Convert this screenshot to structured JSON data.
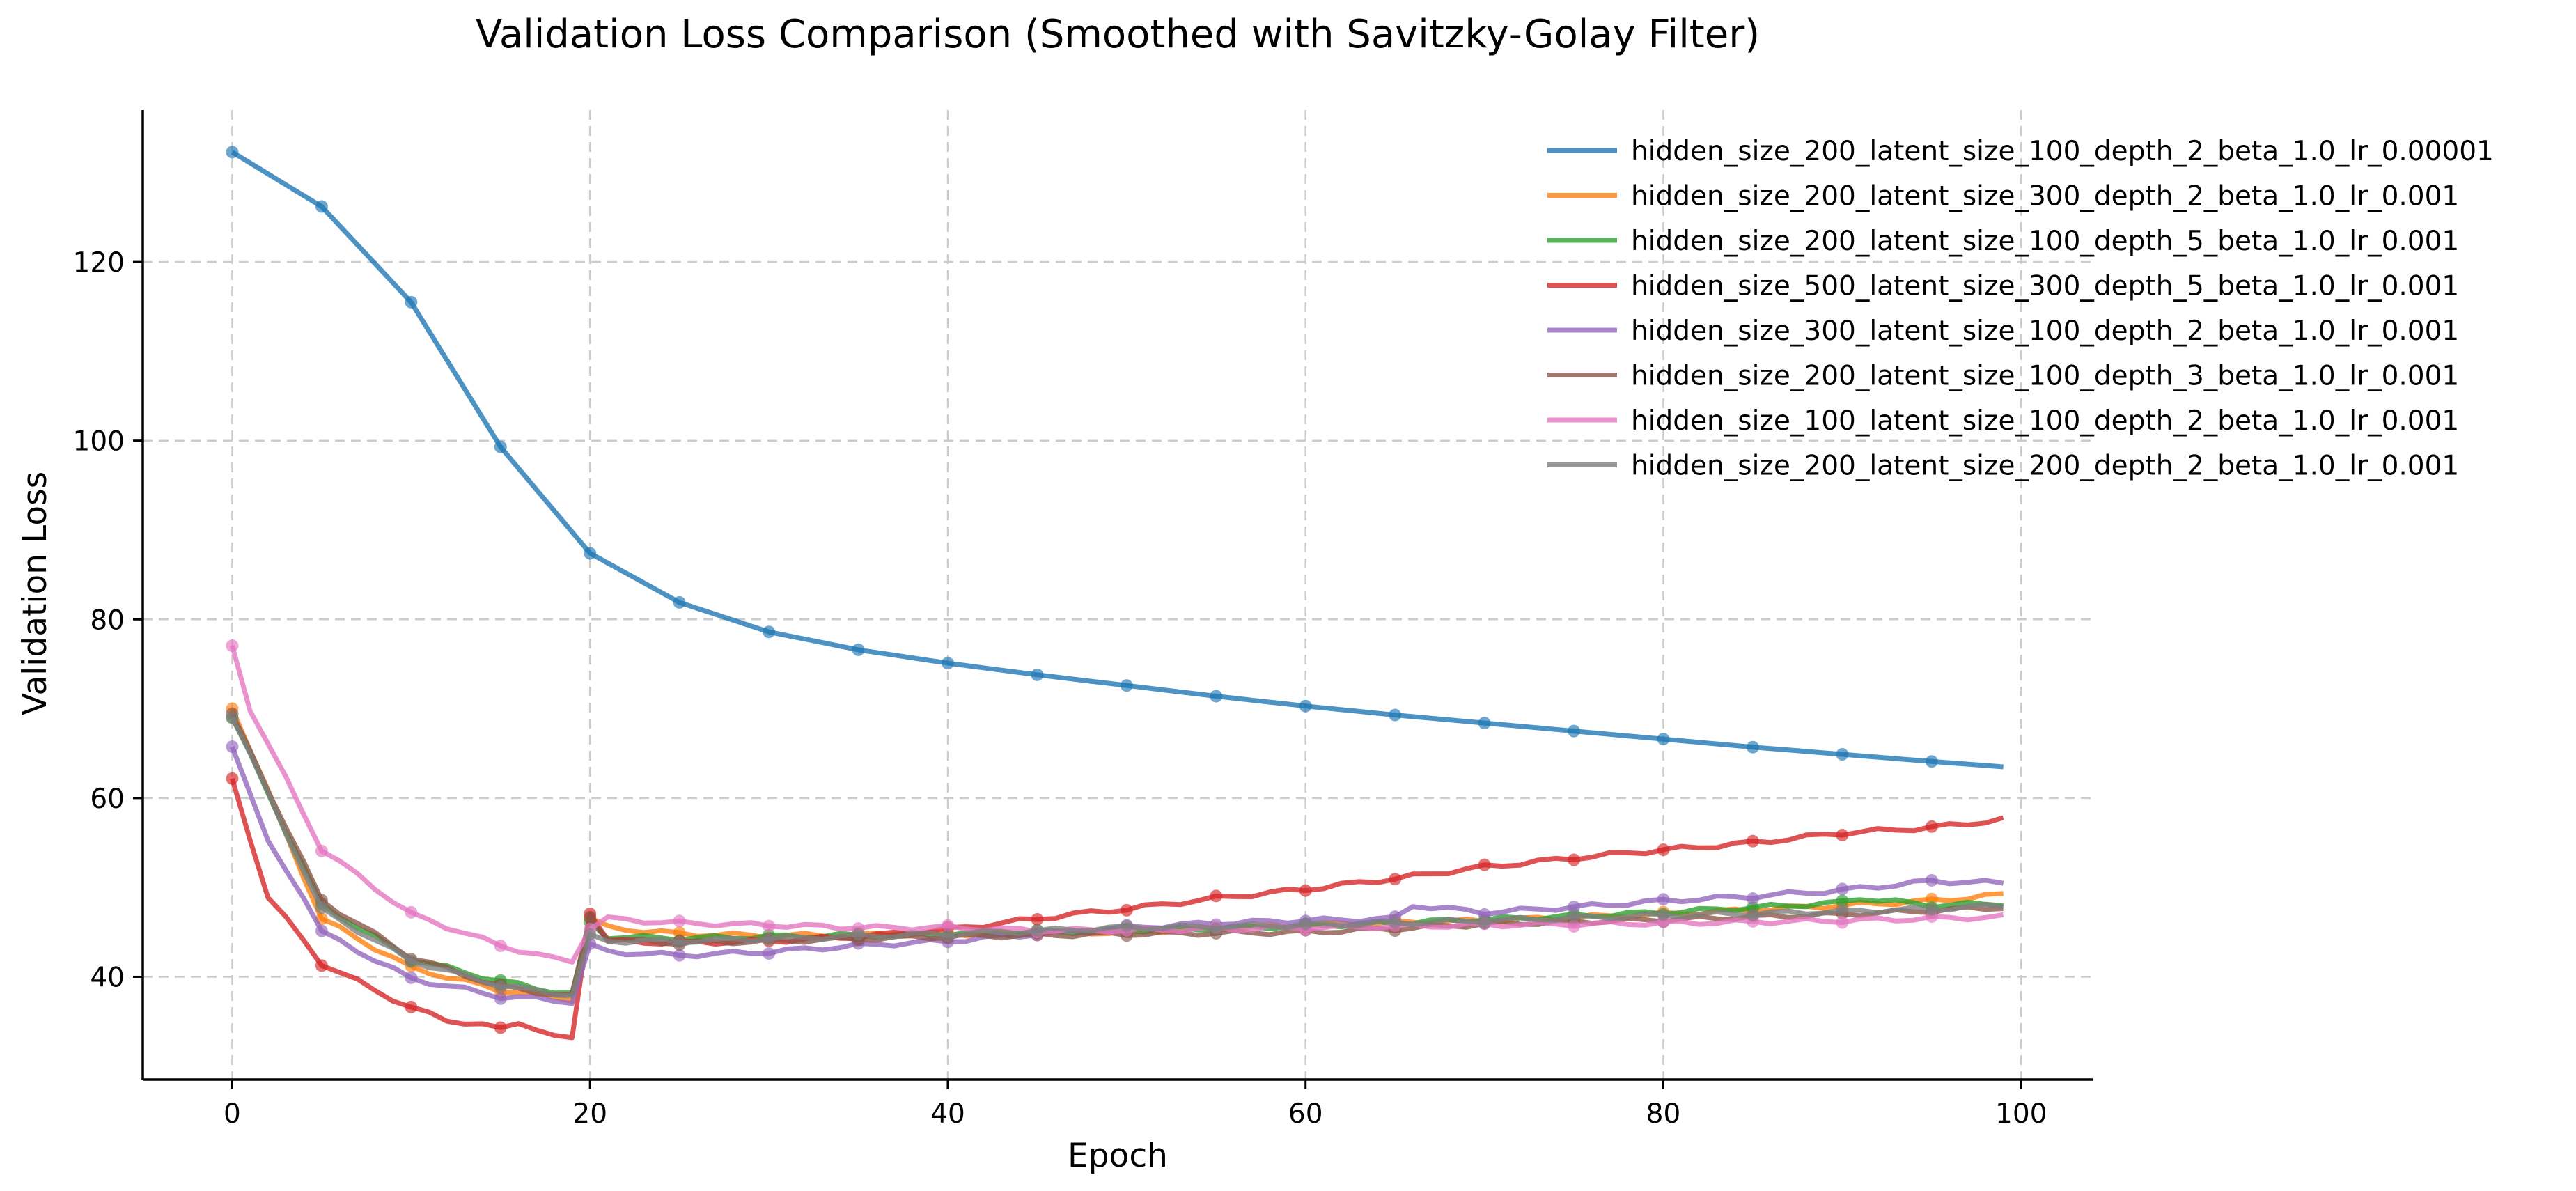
{
  "chart_data": {
    "type": "line",
    "title": "Validation Loss Comparison (Smoothed with Savitzky-Golay Filter)",
    "xlabel": "Epoch",
    "ylabel": "Validation Loss",
    "xlim": [
      -5,
      104
    ],
    "ylim": [
      28.5,
      137
    ],
    "xticks": [
      0,
      20,
      40,
      60,
      80,
      100
    ],
    "yticks": [
      40,
      60,
      80,
      100,
      120
    ],
    "grid": true,
    "legend_position": "top-right",
    "marker_every": 5,
    "series": [
      {
        "name": "hidden_size_200_latent_size_100_depth_2_beta_1.0_lr_0.00001",
        "color": "#1f77b4",
        "knots": [
          [
            0,
            132.3
          ],
          [
            5,
            126.2
          ],
          [
            10,
            115.5
          ],
          [
            15,
            99.3
          ],
          [
            20,
            87.4
          ],
          [
            25,
            81.9
          ],
          [
            30,
            78.6
          ],
          [
            35,
            76.6
          ],
          [
            40,
            75.1
          ],
          [
            45,
            73.8
          ],
          [
            50,
            72.6
          ],
          [
            55,
            71.4
          ],
          [
            60,
            70.3
          ],
          [
            65,
            69.3
          ],
          [
            70,
            68.4
          ],
          [
            75,
            67.5
          ],
          [
            80,
            66.6
          ],
          [
            85,
            65.7
          ],
          [
            90,
            64.9
          ],
          [
            95,
            64.1
          ],
          [
            99,
            63.5
          ]
        ]
      },
      {
        "name": "hidden_size_200_latent_size_300_depth_2_beta_1.0_lr_0.001",
        "color": "#ff7f0e",
        "knots": [
          [
            0,
            70.2
          ],
          [
            5,
            46.5
          ],
          [
            10,
            41
          ],
          [
            15,
            38.5
          ],
          [
            19,
            37.5
          ],
          [
            20,
            46.5
          ],
          [
            21,
            45.5
          ],
          [
            25,
            44.8
          ],
          [
            30,
            44.6
          ],
          [
            40,
            44.8
          ],
          [
            50,
            45
          ],
          [
            60,
            45.8
          ],
          [
            70,
            46.3
          ],
          [
            80,
            47
          ],
          [
            90,
            48
          ],
          [
            95,
            48.5
          ],
          [
            99,
            49.2
          ]
        ]
      },
      {
        "name": "hidden_size_200_latent_size_100_depth_5_beta_1.0_lr_0.001",
        "color": "#2ca02c",
        "knots": [
          [
            0,
            69
          ],
          [
            5,
            48
          ],
          [
            10,
            42
          ],
          [
            15,
            39.5
          ],
          [
            19,
            38
          ],
          [
            20,
            46
          ],
          [
            21,
            44.5
          ],
          [
            25,
            44.3
          ],
          [
            30,
            44.5
          ],
          [
            40,
            44.8
          ],
          [
            50,
            45.2
          ],
          [
            60,
            45.7
          ],
          [
            70,
            46.4
          ],
          [
            80,
            47.2
          ],
          [
            90,
            48.3
          ],
          [
            91,
            48.8
          ],
          [
            95,
            48
          ],
          [
            99,
            48.2
          ]
        ]
      },
      {
        "name": "hidden_size_500_latent_size_300_depth_5_beta_1.0_lr_0.001",
        "color": "#d62728",
        "knots": [
          [
            0,
            62
          ],
          [
            2,
            49
          ],
          [
            5,
            41.5
          ],
          [
            10,
            36.5
          ],
          [
            12,
            35.2
          ],
          [
            15,
            34.2
          ],
          [
            16,
            35
          ],
          [
            18,
            33.2
          ],
          [
            19,
            33.2
          ],
          [
            20,
            47.3
          ],
          [
            21,
            44
          ],
          [
            25,
            43.8
          ],
          [
            30,
            44
          ],
          [
            35,
            44.5
          ],
          [
            40,
            45.3
          ],
          [
            45,
            46.5
          ],
          [
            47,
            47
          ],
          [
            50,
            47.6
          ],
          [
            55,
            48.8
          ],
          [
            60,
            49.8
          ],
          [
            65,
            51
          ],
          [
            70,
            52.3
          ],
          [
            75,
            53.3
          ],
          [
            80,
            54.2
          ],
          [
            85,
            55
          ],
          [
            90,
            56.1
          ],
          [
            95,
            56.7
          ],
          [
            99,
            57.6
          ]
        ]
      },
      {
        "name": "hidden_size_300_latent_size_100_depth_2_beta_1.0_lr_0.001",
        "color": "#9467bd",
        "knots": [
          [
            0,
            66
          ],
          [
            2,
            55
          ],
          [
            4,
            49
          ],
          [
            5,
            45
          ],
          [
            10,
            39.8
          ],
          [
            15,
            37.8
          ],
          [
            18,
            37.4
          ],
          [
            19,
            37.2
          ],
          [
            20,
            43.5
          ],
          [
            21,
            42.8
          ],
          [
            25,
            42.4
          ],
          [
            30,
            42.8
          ],
          [
            35,
            43.5
          ],
          [
            40,
            44
          ],
          [
            45,
            44.8
          ],
          [
            50,
            45.5
          ],
          [
            55,
            46
          ],
          [
            60,
            46.3
          ],
          [
            65,
            46.5
          ],
          [
            66,
            48
          ],
          [
            70,
            47.2
          ],
          [
            75,
            47.8
          ],
          [
            80,
            48.5
          ],
          [
            85,
            49
          ],
          [
            90,
            49.7
          ],
          [
            95,
            50.7
          ],
          [
            99,
            50.5
          ]
        ]
      },
      {
        "name": "hidden_size_200_latent_size_100_depth_3_beta_1.0_lr_0.001",
        "color": "#8c564b",
        "knots": [
          [
            0,
            69.3
          ],
          [
            5,
            48.5
          ],
          [
            10,
            42.2
          ],
          [
            15,
            38.9
          ],
          [
            19,
            37.8
          ],
          [
            20,
            46.7
          ],
          [
            21,
            44.2
          ],
          [
            25,
            43.8
          ],
          [
            30,
            44
          ],
          [
            40,
            44.5
          ],
          [
            50,
            44.8
          ],
          [
            55,
            44.9
          ],
          [
            60,
            45
          ],
          [
            65,
            45.4
          ],
          [
            70,
            45.9
          ],
          [
            80,
            46.4
          ],
          [
            90,
            47
          ],
          [
            95,
            47.4
          ],
          [
            99,
            47.8
          ]
        ]
      },
      {
        "name": "hidden_size_100_latent_size_100_depth_2_beta_1.0_lr_0.001",
        "color": "#e377c2",
        "knots": [
          [
            0,
            77
          ],
          [
            1,
            70
          ],
          [
            5,
            54.3
          ],
          [
            10,
            47
          ],
          [
            15,
            43.5
          ],
          [
            18,
            42
          ],
          [
            19,
            41.8
          ],
          [
            20,
            45.5
          ],
          [
            21,
            46.5
          ],
          [
            25,
            46
          ],
          [
            30,
            45.8
          ],
          [
            35,
            45.5
          ],
          [
            40,
            45.5
          ],
          [
            45,
            45.2
          ],
          [
            50,
            45.2
          ],
          [
            60,
            45.5
          ],
          [
            70,
            45.8
          ],
          [
            80,
            46
          ],
          [
            90,
            46.3
          ],
          [
            99,
            46.7
          ]
        ]
      },
      {
        "name": "hidden_size_200_latent_size_200_depth_2_beta_1.0_lr_0.001",
        "color": "#7f7f7f",
        "knots": [
          [
            0,
            69.2
          ],
          [
            5,
            47.5
          ],
          [
            10,
            41.8
          ],
          [
            15,
            39
          ],
          [
            19,
            37.9
          ],
          [
            20,
            44.5
          ],
          [
            21,
            44
          ],
          [
            25,
            44
          ],
          [
            30,
            44.3
          ],
          [
            40,
            44.8
          ],
          [
            50,
            45.5
          ],
          [
            55,
            45.6
          ],
          [
            60,
            45.8
          ],
          [
            65,
            46
          ],
          [
            70,
            46.3
          ],
          [
            80,
            46.9
          ],
          [
            90,
            47.3
          ],
          [
            95,
            47.6
          ],
          [
            99,
            48
          ]
        ]
      }
    ]
  }
}
